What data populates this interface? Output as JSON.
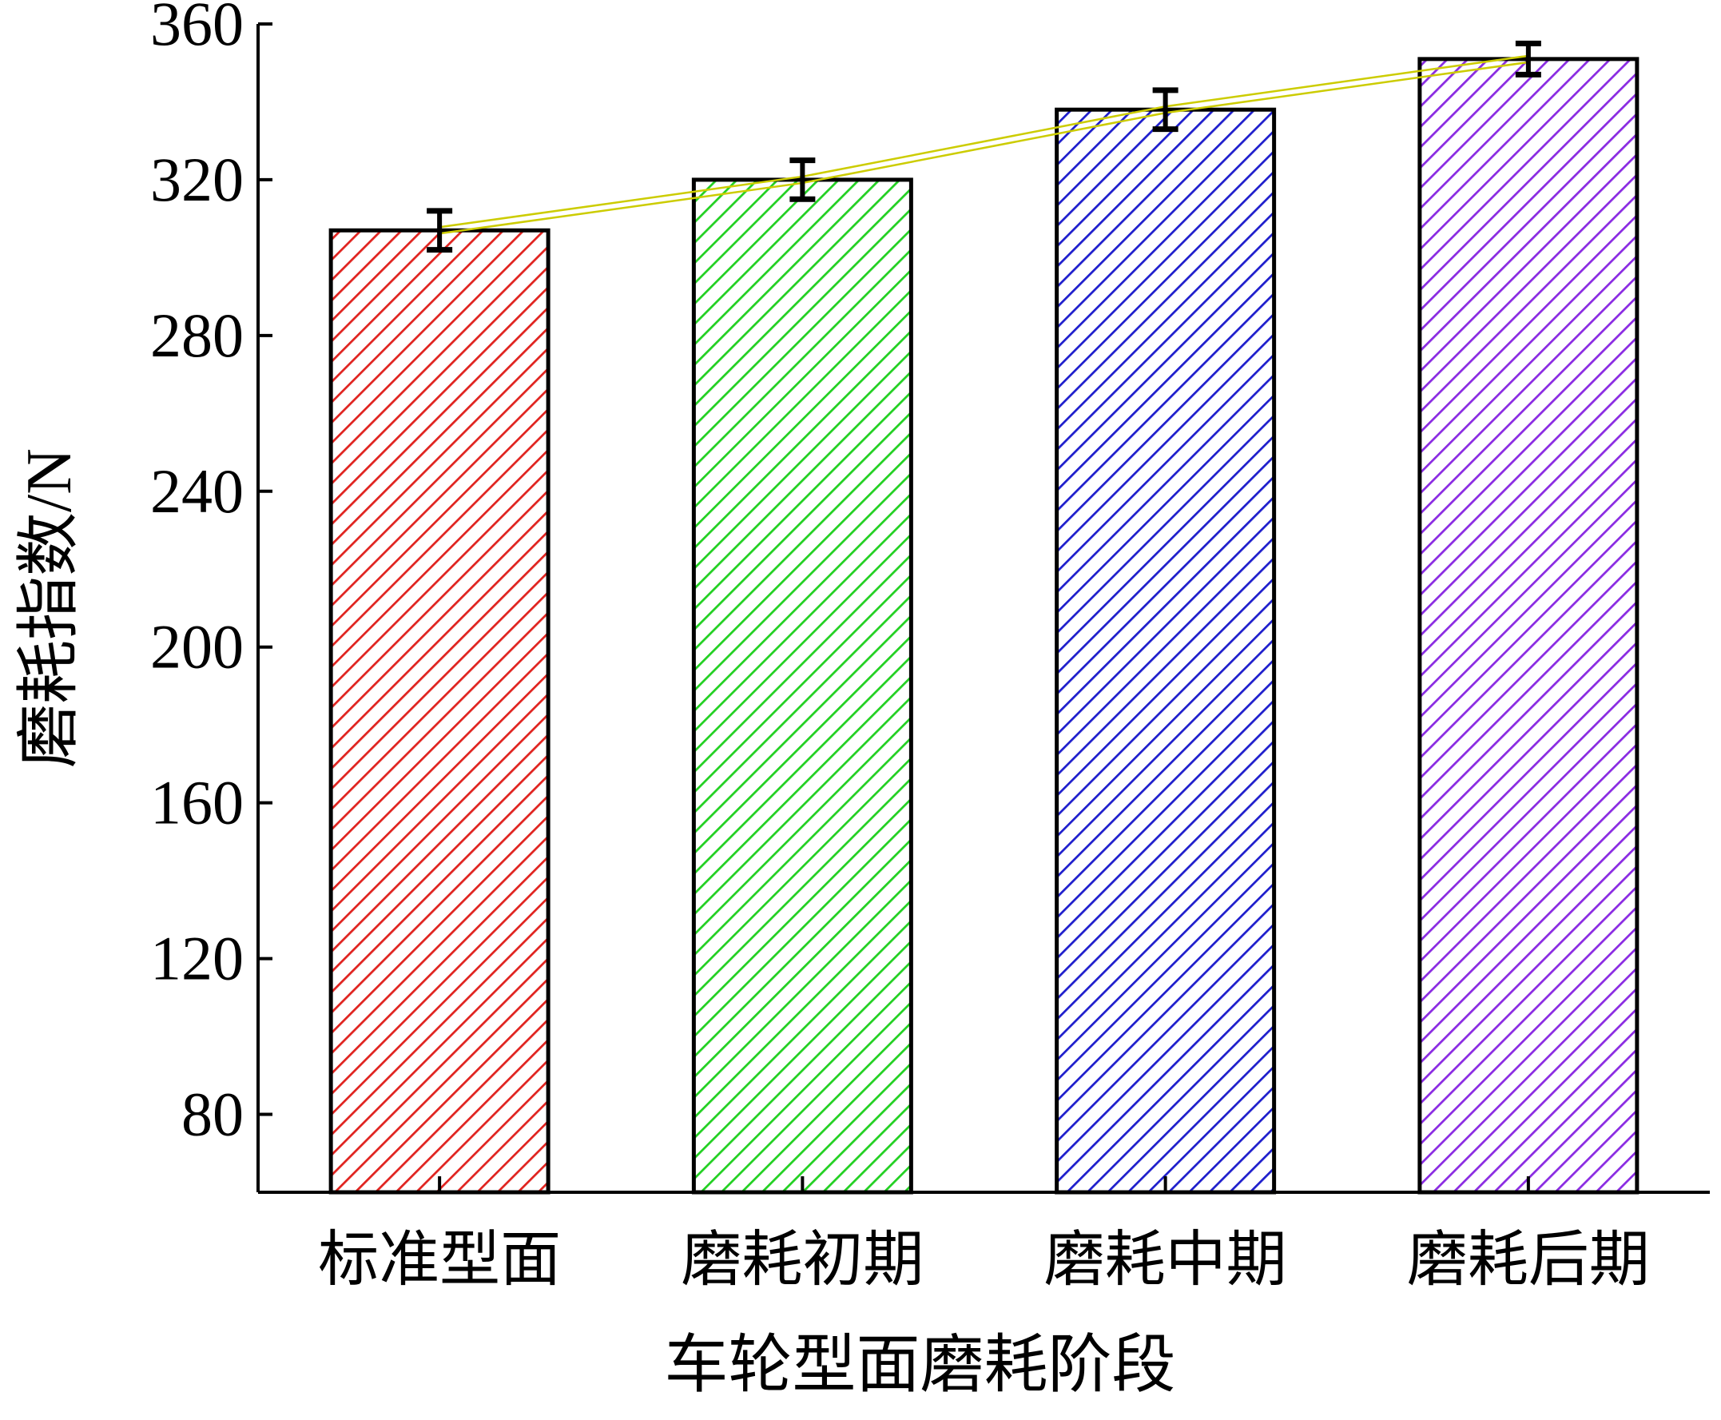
{
  "chart_data": {
    "type": "bar",
    "xlabel": "车轮型面磨耗阶段",
    "ylabel": "磨耗指数/N",
    "ylim": [
      60,
      360
    ],
    "yticks": [
      80,
      120,
      160,
      200,
      240,
      280,
      320,
      360
    ],
    "categories": [
      "标准型面",
      "磨耗初期",
      "磨耗中期",
      "磨耗后期"
    ],
    "values": [
      307,
      320,
      338,
      351
    ],
    "errors": [
      5,
      5,
      5,
      4
    ],
    "bar_colors": [
      "#e0231f",
      "#22d022",
      "#1e1ecc",
      "#8a2be2"
    ],
    "bar_fill_pattern": "diagonal-hatch",
    "trend_line": {
      "values": [
        307,
        320,
        338,
        351
      ],
      "color": "#cccc00"
    },
    "grid": false,
    "legend": "none"
  }
}
